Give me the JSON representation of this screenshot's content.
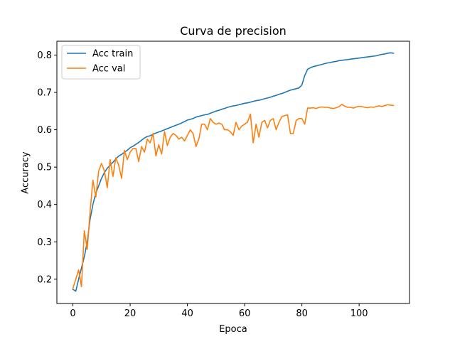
{
  "chart_data": {
    "type": "line",
    "title": "Curva de precision",
    "xlabel": "Epoca",
    "ylabel": "Accuracy",
    "xlim": [
      -5.6,
      117.6
    ],
    "ylim": [
      0.135,
      0.837
    ],
    "xticks": [
      0,
      20,
      40,
      60,
      80,
      100
    ],
    "yticks": [
      0.2,
      0.3,
      0.4,
      0.5,
      0.6,
      0.7,
      0.8
    ],
    "ytick_labels": [
      "0.2",
      "0.3",
      "0.4",
      "0.5",
      "0.6",
      "0.7",
      "0.8"
    ],
    "grid": false,
    "legend_position": "top-left",
    "series": [
      {
        "name": "Acc train",
        "color": "#1f77b4",
        "x": [
          0,
          1,
          2,
          3,
          4,
          5,
          6,
          7,
          8,
          9,
          10,
          11,
          12,
          13,
          14,
          15,
          16,
          17,
          18,
          19,
          20,
          21,
          22,
          23,
          24,
          25,
          26,
          27,
          28,
          29,
          30,
          31,
          32,
          33,
          34,
          35,
          36,
          37,
          38,
          39,
          40,
          41,
          42,
          43,
          44,
          45,
          46,
          47,
          48,
          49,
          50,
          51,
          52,
          53,
          54,
          55,
          56,
          57,
          58,
          59,
          60,
          61,
          62,
          63,
          64,
          65,
          66,
          67,
          68,
          69,
          70,
          71,
          72,
          73,
          74,
          75,
          76,
          77,
          78,
          79,
          80,
          81,
          82,
          83,
          84,
          85,
          86,
          87,
          88,
          89,
          90,
          91,
          92,
          93,
          94,
          95,
          96,
          97,
          98,
          99,
          100,
          101,
          102,
          103,
          104,
          105,
          106,
          107,
          108,
          109,
          110,
          111,
          112
        ],
        "y": [
          0.173,
          0.168,
          0.2,
          0.23,
          0.26,
          0.3,
          0.36,
          0.4,
          0.43,
          0.45,
          0.47,
          0.485,
          0.497,
          0.505,
          0.513,
          0.522,
          0.53,
          0.534,
          0.54,
          0.545,
          0.552,
          0.556,
          0.561,
          0.566,
          0.572,
          0.578,
          0.582,
          0.584,
          0.588,
          0.591,
          0.594,
          0.597,
          0.6,
          0.603,
          0.606,
          0.609,
          0.612,
          0.615,
          0.618,
          0.622,
          0.626,
          0.628,
          0.63,
          0.634,
          0.636,
          0.638,
          0.64,
          0.641,
          0.644,
          0.647,
          0.65,
          0.652,
          0.655,
          0.657,
          0.66,
          0.662,
          0.664,
          0.665,
          0.667,
          0.669,
          0.671,
          0.672,
          0.674,
          0.676,
          0.678,
          0.679,
          0.681,
          0.683,
          0.685,
          0.687,
          0.69,
          0.692,
          0.695,
          0.697,
          0.7,
          0.703,
          0.706,
          0.708,
          0.71,
          0.712,
          0.72,
          0.745,
          0.762,
          0.766,
          0.769,
          0.771,
          0.773,
          0.775,
          0.777,
          0.779,
          0.78,
          0.782,
          0.783,
          0.785,
          0.786,
          0.787,
          0.788,
          0.789,
          0.79,
          0.791,
          0.792,
          0.793,
          0.794,
          0.795,
          0.796,
          0.797,
          0.798,
          0.8,
          0.802,
          0.803,
          0.805,
          0.806,
          0.805
        ]
      },
      {
        "name": "Acc val",
        "color": "#ff7f0e",
        "x": [
          0,
          1,
          2,
          3,
          4,
          5,
          6,
          7,
          8,
          9,
          10,
          11,
          12,
          13,
          14,
          15,
          16,
          17,
          18,
          19,
          20,
          21,
          22,
          23,
          24,
          25,
          26,
          27,
          28,
          29,
          30,
          31,
          32,
          33,
          34,
          35,
          36,
          37,
          38,
          39,
          40,
          41,
          42,
          43,
          44,
          45,
          46,
          47,
          48,
          49,
          50,
          51,
          52,
          53,
          54,
          55,
          56,
          57,
          58,
          59,
          60,
          61,
          62,
          63,
          64,
          65,
          66,
          67,
          68,
          69,
          70,
          71,
          72,
          73,
          74,
          75,
          76,
          77,
          78,
          79,
          80,
          81,
          82,
          83,
          84,
          85,
          86,
          87,
          88,
          89,
          90,
          91,
          92,
          93,
          94,
          95,
          96,
          97,
          98,
          99,
          100,
          101,
          102,
          103,
          104,
          105,
          106,
          107,
          108,
          109,
          110,
          111,
          112
        ],
        "y": [
          0.175,
          0.2,
          0.225,
          0.18,
          0.33,
          0.28,
          0.38,
          0.465,
          0.42,
          0.49,
          0.51,
          0.49,
          0.445,
          0.52,
          0.475,
          0.525,
          0.505,
          0.47,
          0.545,
          0.52,
          0.54,
          0.55,
          0.55,
          0.515,
          0.555,
          0.54,
          0.575,
          0.565,
          0.59,
          0.53,
          0.56,
          0.535,
          0.595,
          0.558,
          0.58,
          0.59,
          0.585,
          0.575,
          0.58,
          0.57,
          0.585,
          0.6,
          0.59,
          0.555,
          0.575,
          0.615,
          0.615,
          0.6,
          0.63,
          0.62,
          0.615,
          0.618,
          0.615,
          0.6,
          0.6,
          0.595,
          0.585,
          0.62,
          0.6,
          0.61,
          0.615,
          0.62,
          0.642,
          0.565,
          0.615,
          0.58,
          0.62,
          0.625,
          0.605,
          0.625,
          0.63,
          0.6,
          0.62,
          0.635,
          0.638,
          0.64,
          0.59,
          0.59,
          0.625,
          0.63,
          0.63,
          0.615,
          0.658,
          0.658,
          0.659,
          0.657,
          0.66,
          0.661,
          0.66,
          0.66,
          0.658,
          0.657,
          0.659,
          0.662,
          0.668,
          0.663,
          0.66,
          0.66,
          0.658,
          0.661,
          0.663,
          0.662,
          0.66,
          0.659,
          0.661,
          0.66,
          0.662,
          0.664,
          0.662,
          0.665,
          0.667,
          0.666,
          0.665
        ]
      }
    ]
  }
}
